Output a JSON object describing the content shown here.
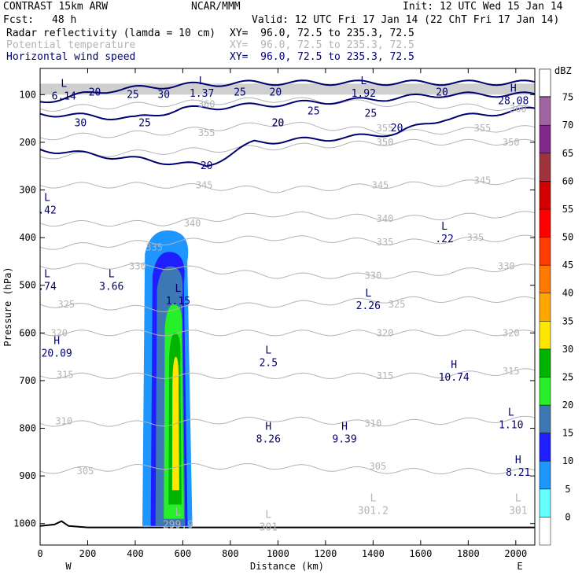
{
  "header": {
    "title": "CONTRAST 15km ARW",
    "center": "NCAR/MMM",
    "init": "Init: 12 UTC Wed 15 Jan 14",
    "fcst_label": "Fcst:",
    "fcst_value": "48 h",
    "valid": "Valid: 12 UTC Fri 17 Jan 14 (22 ChT Fri 17 Jan 14)",
    "fields": [
      {
        "name": "Radar reflectivity (lamda = 10 cm)",
        "xy": "XY=  96.0, 72.5 to 235.3, 72.5",
        "color": "#000000"
      },
      {
        "name": "Potential temperature",
        "xy": "XY=  96.0, 72.5 to 235.3, 72.5",
        "color": "#b4b4b4"
      },
      {
        "name": "Horizontal wind speed",
        "xy": "XY=  96.0, 72.5 to 235.3, 72.5",
        "color": "#00006e"
      }
    ]
  },
  "chart_data": {
    "type": "heatmap",
    "xlabel": "Distance (km)",
    "ylabel": "Pressure (hPa)",
    "xlim": [
      0,
      2080
    ],
    "ylim_pressure": [
      1045,
      45
    ],
    "x_ticks": [
      0,
      200,
      400,
      600,
      800,
      1000,
      1200,
      1400,
      1600,
      1800,
      2000
    ],
    "y_ticks": [
      1000,
      900,
      800,
      700,
      600,
      500,
      400,
      300,
      200,
      100
    ],
    "x_end_labels": {
      "left": "W",
      "right": "E"
    },
    "colorbar": {
      "unit": "dBZ",
      "levels": [
        0,
        5,
        10,
        15,
        20,
        25,
        30,
        35,
        40,
        45,
        50,
        55,
        60,
        65,
        70,
        75
      ],
      "colors": [
        "#64ffff",
        "#1e96ff",
        "#1e1eff",
        "#3c78b4",
        "#28f028",
        "#00b400",
        "#ffe600",
        "#ffa500",
        "#ff7800",
        "#ff3c00",
        "#ff0000",
        "#d20000",
        "#a0323c",
        "#82288c",
        "#a064a0",
        "#c896c8"
      ]
    },
    "reflectivity_bands": [
      {
        "min_dbz": 5,
        "x_range": [
          430,
          640
        ],
        "p_range": [
          1005,
          385
        ]
      },
      {
        "min_dbz": 10,
        "x_range": [
          465,
          620
        ],
        "p_range": [
          1005,
          430
        ]
      },
      {
        "min_dbz": 15,
        "x_range": [
          485,
          610
        ],
        "p_range": [
          1005,
          460
        ]
      },
      {
        "min_dbz": 20,
        "x_range": [
          520,
          605
        ],
        "p_range": [
          990,
          540
        ]
      },
      {
        "min_dbz": 25,
        "x_range": [
          540,
          595
        ],
        "p_range": [
          960,
          600
        ]
      },
      {
        "min_dbz": 30,
        "x_range": [
          555,
          585
        ],
        "p_range": [
          930,
          650
        ]
      }
    ],
    "theta_contours": [
      {
        "level": 305,
        "label_x": 180,
        "p_at_x": [
          [
            0,
            890
          ],
          [
            500,
            880
          ],
          [
            1000,
            880
          ],
          [
            1500,
            890
          ],
          [
            2080,
            890
          ]
        ]
      },
      {
        "level": 310,
        "label_x": 100,
        "p_at_x": [
          [
            0,
            790
          ],
          [
            500,
            790
          ],
          [
            1000,
            780
          ],
          [
            1400,
            790
          ],
          [
            2080,
            780
          ]
        ]
      },
      {
        "level": 315,
        "label_x": 110,
        "p_at_x": [
          [
            0,
            690
          ],
          [
            500,
            690
          ],
          [
            1000,
            690
          ],
          [
            1600,
            690
          ],
          [
            2080,
            680
          ]
        ]
      },
      {
        "level": 320,
        "label_x": 80,
        "p_at_x": [
          [
            0,
            600
          ],
          [
            500,
            600
          ],
          [
            1000,
            600
          ],
          [
            1400,
            600
          ],
          [
            2080,
            600
          ]
        ]
      },
      {
        "level": 325,
        "label_x": 110,
        "p_at_x": [
          [
            0,
            540
          ],
          [
            500,
            550
          ],
          [
            1000,
            540
          ],
          [
            1500,
            530
          ],
          [
            2080,
            530
          ]
        ]
      },
      {
        "level": 330,
        "label_x": 420,
        "p_at_x": [
          [
            0,
            460
          ],
          [
            500,
            460
          ],
          [
            1000,
            480
          ],
          [
            1500,
            480
          ],
          [
            2080,
            460
          ]
        ]
      },
      {
        "level": 335,
        "label_x": 470,
        "p_at_x": [
          [
            0,
            420
          ],
          [
            500,
            410
          ],
          [
            1000,
            400
          ],
          [
            1500,
            410
          ],
          [
            2080,
            400
          ]
        ]
      },
      {
        "level": 340,
        "label_x": 640,
        "p_at_x": [
          [
            0,
            370
          ],
          [
            500,
            370
          ],
          [
            1000,
            350
          ],
          [
            1500,
            360
          ],
          [
            2080,
            350
          ]
        ]
      },
      {
        "level": 345,
        "label_x": 690,
        "p_at_x": [
          [
            0,
            290
          ],
          [
            500,
            290
          ],
          [
            1000,
            300
          ],
          [
            1500,
            290
          ],
          [
            2080,
            280
          ]
        ]
      },
      {
        "level": 350,
        "label_x": 1450,
        "p_at_x": [
          [
            0,
            230
          ],
          [
            500,
            220
          ],
          [
            1000,
            210
          ],
          [
            1500,
            200
          ],
          [
            2080,
            200
          ]
        ]
      },
      {
        "level": 355,
        "label_x": 700,
        "p_at_x": [
          [
            0,
            190
          ],
          [
            500,
            180
          ],
          [
            1000,
            160
          ],
          [
            1500,
            180
          ],
          [
            2080,
            170
          ]
        ]
      },
      {
        "level": 360,
        "label_x": 700,
        "p_at_x": [
          [
            0,
            130
          ],
          [
            500,
            120
          ],
          [
            1000,
            110
          ],
          [
            1500,
            120
          ],
          [
            2080,
            130
          ]
        ]
      }
    ],
    "wind_contours": [
      {
        "level": 20,
        "label_x": 700,
        "p_at_x": [
          [
            0,
            215
          ],
          [
            300,
            230
          ],
          [
            500,
            240
          ],
          [
            700,
            250
          ],
          [
            900,
            200
          ],
          [
            1300,
            190
          ],
          [
            1500,
            180
          ],
          [
            1700,
            150
          ],
          [
            1900,
            140
          ],
          [
            2080,
            130
          ]
        ]
      },
      {
        "level": 25,
        "label_x": 440,
        "p_at_x": [
          [
            0,
            140
          ],
          [
            400,
            150
          ],
          [
            600,
            130
          ],
          [
            1000,
            120
          ],
          [
            1400,
            110
          ],
          [
            1700,
            100
          ],
          [
            2080,
            100
          ]
        ]
      },
      {
        "level": 30,
        "label_x": 160,
        "p_at_x": [
          [
            0,
            115
          ],
          [
            300,
            90
          ],
          [
            600,
            80
          ],
          [
            900,
            75
          ],
          [
            2080,
            75
          ]
        ]
      }
    ],
    "theta_labels": [
      {
        "text": "305",
        "x": 190,
        "p": 890
      },
      {
        "text": "310",
        "x": 100,
        "p": 785
      },
      {
        "text": "315",
        "x": 105,
        "p": 688
      },
      {
        "text": "320",
        "x": 80,
        "p": 600
      },
      {
        "text": "325",
        "x": 110,
        "p": 540
      },
      {
        "text": "330",
        "x": 410,
        "p": 460
      },
      {
        "text": "335",
        "x": 480,
        "p": 420
      },
      {
        "text": "340",
        "x": 640,
        "p": 370
      },
      {
        "text": "345",
        "x": 690,
        "p": 290
      },
      {
        "text": "350",
        "x": 1450,
        "p": 200
      },
      {
        "text": "355",
        "x": 700,
        "p": 180
      },
      {
        "text": "360",
        "x": 700,
        "p": 120
      },
      {
        "text": "310",
        "x": 1400,
        "p": 790
      },
      {
        "text": "315",
        "x": 1450,
        "p": 690
      },
      {
        "text": "320",
        "x": 1450,
        "p": 600
      },
      {
        "text": "325",
        "x": 1500,
        "p": 540
      },
      {
        "text": "330",
        "x": 1400,
        "p": 480
      },
      {
        "text": "335",
        "x": 1450,
        "p": 410
      },
      {
        "text": "340",
        "x": 1450,
        "p": 360
      },
      {
        "text": "345",
        "x": 1430,
        "p": 290
      },
      {
        "text": "350",
        "x": 1450,
        "p": 200
      },
      {
        "text": "355",
        "x": 1450,
        "p": 170
      },
      {
        "text": "305",
        "x": 1420,
        "p": 880
      },
      {
        "text": "315",
        "x": 1980,
        "p": 680
      },
      {
        "text": "320",
        "x": 1980,
        "p": 600
      },
      {
        "text": "330",
        "x": 1960,
        "p": 460
      },
      {
        "text": "335",
        "x": 1830,
        "p": 400
      },
      {
        "text": "345",
        "x": 1860,
        "p": 280
      },
      {
        "text": "350",
        "x": 1980,
        "p": 200
      },
      {
        "text": "355",
        "x": 1860,
        "p": 170
      },
      {
        "text": "360",
        "x": 2010,
        "p": 130
      }
    ],
    "wind_labels": [
      {
        "text": "20",
        "x": 230,
        "p": 95
      },
      {
        "text": "25",
        "x": 390,
        "p": 100
      },
      {
        "text": "30",
        "x": 520,
        "p": 100
      },
      {
        "text": "25",
        "x": 840,
        "p": 95
      },
      {
        "text": "20",
        "x": 990,
        "p": 95
      },
      {
        "text": "30",
        "x": 170,
        "p": 160
      },
      {
        "text": "25",
        "x": 440,
        "p": 160
      },
      {
        "text": "20",
        "x": 1000,
        "p": 160
      },
      {
        "text": "20",
        "x": 1000,
        "p": 160
      },
      {
        "text": "25",
        "x": 1150,
        "p": 135
      },
      {
        "text": "25",
        "x": 1390,
        "p": 140
      },
      {
        "text": "20",
        "x": 1500,
        "p": 170
      },
      {
        "text": "20",
        "x": 1690,
        "p": 95
      },
      {
        "text": "20",
        "x": 700,
        "p": 250
      }
    ],
    "hl_markers": [
      {
        "type": "L",
        "value": "6.14",
        "x": 100,
        "p": 90,
        "color": "#00006e"
      },
      {
        "type": "L",
        "value": "1.37",
        "x": 680,
        "p": 85,
        "color": "#00006e"
      },
      {
        "type": "L",
        "value": "1.92",
        "x": 1360,
        "p": 85,
        "color": "#00006e"
      },
      {
        "type": "H",
        "value": "28.08",
        "x": 1990,
        "p": 100,
        "color": "#00006e"
      },
      {
        "type": "L",
        "value": ".42",
        "x": 30,
        "p": 330,
        "color": "#00006e"
      },
      {
        "type": "L",
        "value": ".22",
        "x": 1700,
        "p": 390,
        "color": "#00006e"
      },
      {
        "type": "L",
        "value": ".74",
        "x": 30,
        "p": 490,
        "color": "#00006e"
      },
      {
        "type": "L",
        "value": "3.66",
        "x": 300,
        "p": 490,
        "color": "#00006e"
      },
      {
        "type": "L",
        "value": "1.15",
        "x": 580,
        "p": 520,
        "color": "#00006e"
      },
      {
        "type": "L",
        "value": "2.26",
        "x": 1380,
        "p": 530,
        "color": "#00006e"
      },
      {
        "type": "H",
        "value": "20.09",
        "x": 70,
        "p": 630,
        "color": "#00006e"
      },
      {
        "type": "L",
        "value": "2.5",
        "x": 960,
        "p": 650,
        "color": "#00006e"
      },
      {
        "type": "H",
        "value": "10.74",
        "x": 1740,
        "p": 680,
        "color": "#00006e"
      },
      {
        "type": "L",
        "value": "1.10",
        "x": 1980,
        "p": 780,
        "color": "#00006e"
      },
      {
        "type": "H",
        "value": "8.26",
        "x": 960,
        "p": 810,
        "color": "#00006e"
      },
      {
        "type": "H",
        "value": "9.39",
        "x": 1280,
        "p": 810,
        "color": "#00006e"
      },
      {
        "type": "H",
        "value": "8.21",
        "x": 2010,
        "p": 880,
        "color": "#00006e"
      },
      {
        "type": "L",
        "value": "301.2",
        "x": 1400,
        "p": 960,
        "color": "#b4b4b4"
      },
      {
        "type": "L",
        "value": "301",
        "x": 2010,
        "p": 960,
        "color": "#b4b4b4"
      },
      {
        "type": "L",
        "value": "301",
        "x": 960,
        "p": 995,
        "color": "#b4b4b4"
      },
      {
        "type": "L",
        "value": "299.9",
        "x": 580,
        "p": 990,
        "color": "#b4b4b4"
      }
    ],
    "terrain_p": [
      [
        0,
        1005
      ],
      [
        60,
        1002
      ],
      [
        90,
        995
      ],
      [
        120,
        1005
      ],
      [
        200,
        1008
      ],
      [
        2080,
        1008
      ]
    ]
  }
}
